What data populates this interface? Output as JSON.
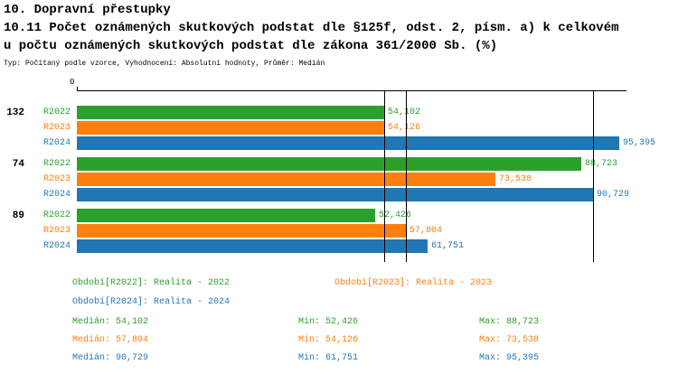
{
  "title": {
    "line1": "10. Dopravní přestupky",
    "line2": "10.11 Počet oznámených skutkových podstat dle §125f, odst. 2, písm. a) k celkovém",
    "line3": "u počtu oznámených skutkových podstat dle zákona 361/2000 Sb. (%)",
    "meta": "Typ: Počítaný podle vzorce, Vyhodnocení: Absolutní hodnoty, Průměr: Medián"
  },
  "colors": {
    "R2022": "#2CA02C",
    "R2023": "#FF7F0E",
    "R2024": "#1F77B4",
    "axis": "#000000"
  },
  "chart_data": {
    "type": "bar",
    "orientation": "horizontal",
    "x_axis": {
      "origin_label": "0",
      "min": 0,
      "max": 95.395
    },
    "series_names": [
      "R2022",
      "R2023",
      "R2024"
    ],
    "groups": [
      {
        "label": "132",
        "values": [
          54.102,
          54.126,
          95.395
        ],
        "value_labels": [
          "54,102",
          "54,126",
          "95,395"
        ]
      },
      {
        "label": "74",
        "values": [
          88.723,
          73.538,
          90.729
        ],
        "value_labels": [
          "88,723",
          "73,538",
          "90,729"
        ]
      },
      {
        "label": "89",
        "values": [
          52.426,
          57.804,
          61.751
        ],
        "value_labels": [
          "52,426",
          "57,804",
          "61,751"
        ]
      }
    ],
    "median_lines": [
      {
        "series": "R2022",
        "value": 54.102
      },
      {
        "series": "R2023",
        "value": 57.804
      },
      {
        "series": "R2024",
        "value": 90.729
      }
    ],
    "legend": [
      {
        "series": "R2022",
        "label": "Období[R2022]: Realita - 2022"
      },
      {
        "series": "R2023",
        "label": "Období[R2023]: Realita - 2023"
      },
      {
        "series": "R2024",
        "label": "Období[R2024]: Realita - 2024"
      }
    ],
    "stats": [
      {
        "series": "R2022",
        "median": "Medián: 54,102",
        "min": "Min: 52,426",
        "max": "Max: 88,723"
      },
      {
        "series": "R2023",
        "median": "Medián: 57,804",
        "min": "Min: 54,126",
        "max": "Max: 73,538"
      },
      {
        "series": "R2024",
        "median": "Medián: 90,729",
        "min": "Min: 61,751",
        "max": "Max: 95,395"
      }
    ]
  }
}
